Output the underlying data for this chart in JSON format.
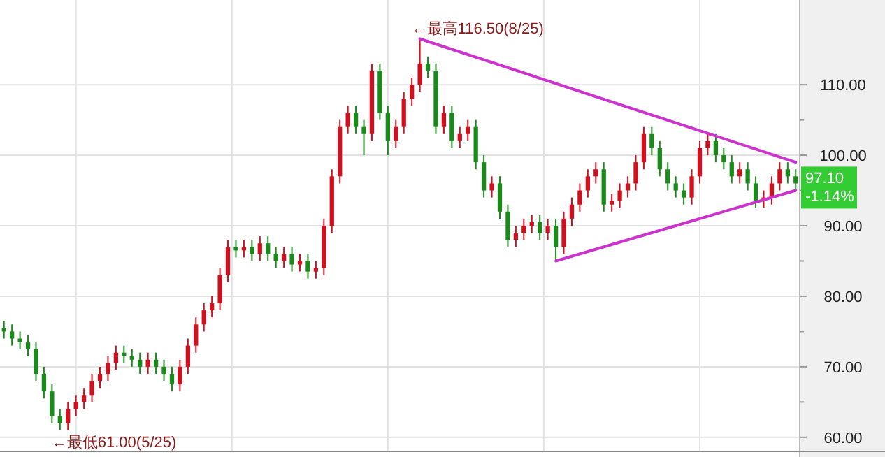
{
  "chart_data": {
    "type": "candlestick",
    "categories": [
      null,
      null,
      null,
      null,
      null,
      null,
      null,
      null,
      null,
      null,
      null,
      null,
      null,
      null,
      null,
      null,
      null,
      null,
      null,
      null,
      null,
      null,
      null,
      null,
      null,
      null,
      null,
      null,
      null,
      null,
      null,
      null,
      null,
      null,
      null,
      null,
      null,
      null,
      null,
      null,
      null,
      null,
      null,
      null,
      null,
      null,
      null,
      null,
      null,
      null,
      null,
      null,
      null,
      null,
      null,
      null,
      null,
      null,
      null,
      null,
      null,
      null,
      null,
      null,
      null,
      null,
      null,
      null,
      null,
      null,
      null,
      null,
      null,
      null,
      null,
      null,
      null,
      null,
      null,
      null,
      null,
      null,
      null,
      null,
      null,
      null,
      null,
      null,
      null,
      null,
      null,
      null,
      null,
      null,
      null,
      null,
      null,
      null,
      null,
      null
    ],
    "ohlc": [
      [
        75.5,
        76.5,
        74,
        75
      ],
      [
        75,
        76,
        73,
        74
      ],
      [
        74,
        75,
        72.5,
        73.5
      ],
      [
        73.5,
        74.5,
        71.5,
        72.5
      ],
      [
        72.5,
        73.5,
        68,
        69
      ],
      [
        69,
        70,
        65.5,
        66.5
      ],
      [
        66.5,
        67.5,
        62,
        63
      ],
      [
        63,
        64,
        61,
        62
      ],
      [
        62,
        65,
        61,
        64
      ],
      [
        64,
        66,
        63,
        65
      ],
      [
        65,
        67,
        64,
        66
      ],
      [
        66,
        69,
        65,
        68
      ],
      [
        68,
        70,
        67,
        69
      ],
      [
        69,
        71.5,
        68,
        70.5
      ],
      [
        70.5,
        73,
        69.5,
        72
      ],
      [
        72,
        73,
        70.5,
        71.5
      ],
      [
        71.5,
        72.5,
        70,
        71
      ],
      [
        71,
        72,
        69,
        70
      ],
      [
        70,
        72,
        69,
        71
      ],
      [
        71,
        72,
        69,
        70
      ],
      [
        70,
        71,
        68,
        69
      ],
      [
        69,
        70,
        66.5,
        67.5
      ],
      [
        67.5,
        71,
        66.5,
        70
      ],
      [
        70,
        74,
        69,
        73
      ],
      [
        73,
        77,
        72,
        76
      ],
      [
        76,
        79,
        75,
        78
      ],
      [
        78,
        80,
        77,
        79
      ],
      [
        79,
        84,
        78,
        83
      ],
      [
        83,
        88,
        82,
        87
      ],
      [
        87,
        88,
        85.5,
        86.5
      ],
      [
        86.5,
        88,
        85.5,
        87
      ],
      [
        87,
        88,
        85,
        86
      ],
      [
        86,
        88.5,
        85,
        87.5
      ],
      [
        87.5,
        88.5,
        85,
        86
      ],
      [
        86,
        87,
        84,
        85
      ],
      [
        85,
        87,
        84,
        86
      ],
      [
        86,
        87,
        83.5,
        84.5
      ],
      [
        84.5,
        86,
        83.5,
        85
      ],
      [
        85,
        86,
        82.5,
        83.5
      ],
      [
        83.5,
        85,
        82.5,
        84
      ],
      [
        84,
        91,
        83,
        90
      ],
      [
        90,
        98,
        89,
        97
      ],
      [
        97,
        105,
        96,
        104
      ],
      [
        104,
        107,
        103,
        106
      ],
      [
        106,
        107,
        103,
        104
      ],
      [
        104,
        105,
        100,
        103
      ],
      [
        103,
        113,
        102,
        112
      ],
      [
        112,
        113,
        105,
        106
      ],
      [
        106,
        107,
        100,
        102
      ],
      [
        102,
        105,
        101,
        104
      ],
      [
        104,
        109,
        103,
        108
      ],
      [
        108,
        111,
        107,
        110
      ],
      [
        110,
        116.5,
        109,
        113
      ],
      [
        113,
        114,
        111,
        112
      ],
      [
        112,
        113,
        103,
        104
      ],
      [
        104,
        107,
        103,
        106
      ],
      [
        106,
        107,
        101,
        102
      ],
      [
        102,
        104,
        101,
        103
      ],
      [
        103,
        105,
        102,
        104
      ],
      [
        104,
        105,
        98,
        99
      ],
      [
        99,
        100,
        94,
        95
      ],
      [
        95,
        97,
        94,
        96
      ],
      [
        96,
        97,
        91,
        92
      ],
      [
        92,
        93,
        87,
        88
      ],
      [
        88,
        90,
        87,
        89
      ],
      [
        89,
        91,
        88,
        90
      ],
      [
        90,
        91.5,
        89,
        90.5
      ],
      [
        90.5,
        91.5,
        88,
        89
      ],
      [
        89,
        91,
        88,
        90
      ],
      [
        90,
        91,
        85,
        87
      ],
      [
        87,
        92,
        86,
        91
      ],
      [
        91,
        94,
        90,
        93
      ],
      [
        93,
        96,
        92,
        95
      ],
      [
        95,
        98,
        94,
        97
      ],
      [
        97,
        99,
        96,
        98
      ],
      [
        98,
        99,
        92,
        93
      ],
      [
        93,
        94.5,
        92,
        93.5
      ],
      [
        93.5,
        96,
        92.5,
        95
      ],
      [
        95,
        97,
        94,
        96
      ],
      [
        96,
        100,
        95,
        99
      ],
      [
        99,
        104,
        98,
        103
      ],
      [
        103,
        104,
        100,
        101
      ],
      [
        101,
        102,
        97,
        98
      ],
      [
        98,
        99,
        95,
        96
      ],
      [
        96,
        97,
        94,
        95
      ],
      [
        95,
        96,
        93,
        94
      ],
      [
        94,
        98,
        93,
        97
      ],
      [
        97,
        102,
        96,
        101
      ],
      [
        101,
        103,
        100,
        102
      ],
      [
        102,
        103,
        99,
        100
      ],
      [
        100,
        101,
        98,
        99
      ],
      [
        99,
        100,
        96,
        97
      ],
      [
        97,
        99,
        96,
        98
      ],
      [
        98,
        99,
        95,
        96
      ],
      [
        96,
        97,
        92.5,
        93.5
      ],
      [
        93.5,
        95,
        92.5,
        94
      ],
      [
        94,
        97,
        93,
        96
      ],
      [
        96,
        99,
        95,
        98
      ],
      [
        98,
        99,
        96,
        97
      ],
      [
        97,
        98,
        95,
        96
      ]
    ],
    "series": [
      {
        "type": "line",
        "color": "#cc33cc",
        "values": [
          null,
          null,
          null,
          null,
          null,
          null,
          null,
          null,
          null,
          null,
          null,
          null,
          null,
          null,
          null,
          null,
          null,
          null,
          null,
          null,
          null,
          null,
          null,
          null,
          null,
          null,
          null,
          null,
          null,
          null,
          null,
          null,
          null,
          null,
          null,
          null,
          null,
          null,
          null,
          null,
          null,
          null,
          null,
          null,
          null,
          null,
          null,
          null,
          null,
          null,
          null,
          null,
          116.5,
          null,
          null,
          null,
          null,
          null,
          null,
          null,
          null,
          null,
          null,
          null,
          null,
          null,
          null,
          null,
          null,
          null,
          null,
          null,
          null,
          null,
          null,
          null,
          null,
          null,
          null,
          null,
          null,
          null,
          null,
          null,
          null,
          null,
          null,
          null,
          null,
          null,
          null,
          null,
          null,
          null,
          null,
          null,
          null,
          null,
          null,
          99.0
        ]
      },
      {
        "type": "line",
        "color": "#cc33cc",
        "values": [
          null,
          null,
          null,
          null,
          null,
          null,
          null,
          null,
          null,
          null,
          null,
          null,
          null,
          null,
          null,
          null,
          null,
          null,
          null,
          null,
          null,
          null,
          null,
          null,
          null,
          null,
          null,
          null,
          null,
          null,
          null,
          null,
          null,
          null,
          null,
          null,
          null,
          null,
          null,
          null,
          null,
          null,
          null,
          null,
          null,
          null,
          null,
          null,
          null,
          null,
          null,
          null,
          null,
          null,
          null,
          null,
          null,
          null,
          null,
          null,
          null,
          null,
          null,
          null,
          null,
          null,
          null,
          null,
          null,
          85,
          null,
          null,
          null,
          null,
          null,
          null,
          null,
          null,
          null,
          null,
          null,
          null,
          null,
          null,
          null,
          null,
          null,
          null,
          null,
          null,
          null,
          null,
          null,
          null,
          null,
          null,
          null,
          null,
          null,
          95.0
        ]
      }
    ],
    "ylim": [
      58,
      122
    ],
    "yticks": [
      {
        "value": 60,
        "label": "60.00"
      },
      {
        "value": 70,
        "label": "70.00"
      },
      {
        "value": 80,
        "label": "80.00"
      },
      {
        "value": 90,
        "label": "90.00"
      },
      {
        "value": 100,
        "label": "100.00"
      },
      {
        "value": 110,
        "label": "110.00"
      }
    ],
    "grid": true,
    "annotations": [
      "←最高116.50(8/25)",
      "←最低61.00(5/25)",
      "97.10",
      "-1.14%"
    ]
  }
}
